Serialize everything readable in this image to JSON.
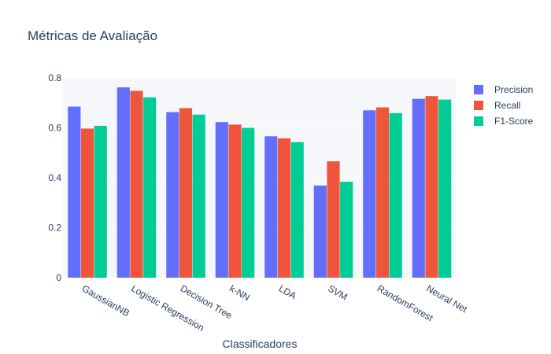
{
  "chart_data": {
    "type": "bar",
    "title": "Métricas de Avaliação",
    "xlabel": "Classificadores",
    "ylabel": "",
    "ylim": [
      0,
      0.8
    ],
    "yticks": [
      "0",
      "0.2",
      "0.4",
      "0.6",
      "0.8"
    ],
    "ytick_values": [
      0,
      0.2,
      0.4,
      0.6,
      0.8
    ],
    "grid": true,
    "legend_position": "top-right",
    "categories": [
      "GaussianNB",
      "Logistic Regression",
      "Decision Tree",
      "k-NN",
      "LDA",
      "SVM",
      "RandomForest",
      "Neural Net"
    ],
    "series": [
      {
        "name": "Precision",
        "color": "#636efa",
        "values": [
          0.685,
          0.762,
          0.663,
          0.623,
          0.566,
          0.369,
          0.67,
          0.716
        ]
      },
      {
        "name": "Recall",
        "color": "#ef553b",
        "values": [
          0.597,
          0.748,
          0.679,
          0.613,
          0.558,
          0.466,
          0.682,
          0.727
        ]
      },
      {
        "name": "F1-Score",
        "color": "#00cc96",
        "values": [
          0.608,
          0.722,
          0.653,
          0.6,
          0.543,
          0.384,
          0.659,
          0.713
        ]
      }
    ]
  }
}
